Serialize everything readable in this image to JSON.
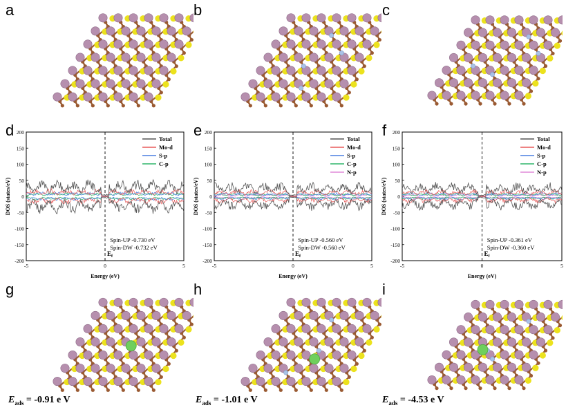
{
  "panels": {
    "a": "a",
    "b": "b",
    "c": "c",
    "d": "d",
    "e": "e",
    "f": "f",
    "g": "g",
    "h": "h",
    "i": "i"
  },
  "colors": {
    "mo": "#b68fae",
    "mo_edge": "#8d6a87",
    "s": "#ece21d",
    "c": "#9a5a32",
    "n": "#a9c2e6",
    "adsorbate": "#6fcf5d",
    "total": "#555555",
    "mo_d": "#e85a5a",
    "s_p": "#4a7fe0",
    "c_p": "#2fb56a",
    "n_p": "#e08ad8"
  },
  "dos_axis": {
    "ylabel": "DOS (states/eV)",
    "xlabel": "Energy (eV)",
    "xticks": [
      "-5",
      "0",
      "5"
    ],
    "yticks": [
      "200",
      "150",
      "100",
      "50",
      "0",
      "-50",
      "-100",
      "-150",
      "-200"
    ],
    "fermi_label": "E",
    "fermi_sub": "f"
  },
  "chart_data": [
    {
      "type": "line",
      "panel": "d",
      "xlabel": "Energy (eV)",
      "ylabel": "DOS (states/eV)",
      "xlim": [
        -5,
        5
      ],
      "ylim": [
        -200,
        200
      ],
      "fermi_level": 0,
      "legend_position": "top-right",
      "series": [
        {
          "name": "Total",
          "color": "#555555",
          "amplitude": 55
        },
        {
          "name": "Mo-d",
          "color": "#e85a5a",
          "amplitude": 25
        },
        {
          "name": "S-p",
          "color": "#4a7fe0",
          "amplitude": 14
        },
        {
          "name": "C-p",
          "color": "#2fb56a",
          "amplitude": 12
        }
      ],
      "annotations": [
        "Spin-UP  -0.730  eV",
        "Spin-DW  -0.732 eV"
      ]
    },
    {
      "type": "line",
      "panel": "e",
      "xlabel": "Energy (eV)",
      "ylabel": "DOS (states/eV)",
      "xlim": [
        -5,
        5
      ],
      "ylim": [
        -200,
        200
      ],
      "fermi_level": 0,
      "legend_position": "top-right",
      "series": [
        {
          "name": "Total",
          "color": "#555555",
          "amplitude": 45
        },
        {
          "name": "Mo-d",
          "color": "#e85a5a",
          "amplitude": 22
        },
        {
          "name": "S-p",
          "color": "#4a7fe0",
          "amplitude": 12
        },
        {
          "name": "C-p",
          "color": "#2fb56a",
          "amplitude": 10
        },
        {
          "name": "N-p",
          "color": "#e08ad8",
          "amplitude": 6
        }
      ],
      "annotations": [
        "Spin-UP  -0.560  eV",
        "Spin-DW  -0.560 eV"
      ]
    },
    {
      "type": "line",
      "panel": "f",
      "xlabel": "Energy (eV)",
      "ylabel": "DOS (states/eV)",
      "xlim": [
        -5,
        5
      ],
      "ylim": [
        -200,
        200
      ],
      "fermi_level": 0,
      "legend_position": "top-right",
      "series": [
        {
          "name": "Total",
          "color": "#555555",
          "amplitude": 45
        },
        {
          "name": "Mo-d",
          "color": "#e85a5a",
          "amplitude": 22
        },
        {
          "name": "S-p",
          "color": "#4a7fe0",
          "amplitude": 12
        },
        {
          "name": "C-p",
          "color": "#2fb56a",
          "amplitude": 10
        },
        {
          "name": "N-p",
          "color": "#e08ad8",
          "amplitude": 6
        }
      ],
      "annotations": [
        "Spin-UP  -0.361  eV",
        "Spin-DW  -0.360 eV"
      ]
    }
  ],
  "adsorption": [
    {
      "panel": "g",
      "label": "E",
      "sub": "ads",
      "value": " = -0.91 e V"
    },
    {
      "panel": "h",
      "label": "E",
      "sub": "ads",
      "value": " = -1.01 e V"
    },
    {
      "panel": "i",
      "label": "E",
      "sub": "ads",
      "value": " = -4.53 e V"
    }
  ]
}
